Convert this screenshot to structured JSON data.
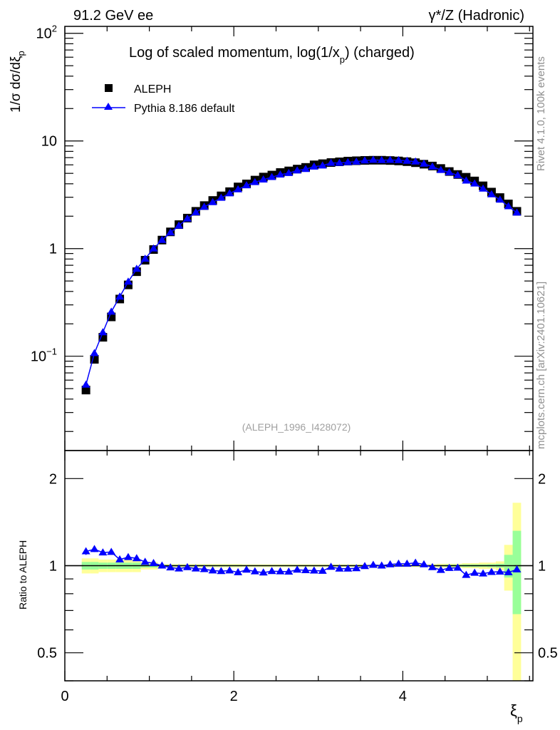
{
  "header": {
    "left": "91.2 GeV ee",
    "right": "γ*/Z (Hadronic)",
    "side_top": "Rivet 4.1.0,  100k events",
    "side_bottom": "mcplots.cern.ch [arXiv:2401.10621]"
  },
  "chart_data": [
    {
      "type": "scatter",
      "title": "Log of scaled momentum, log(1/x_p) (charged)",
      "title_main": "Log of scaled momentum, log(1/x",
      "title_sub": "p",
      "title_end": ") (charged)",
      "ylabel": "1/σ  dσ/dξ_p",
      "ylabel_main": "1/σ  dσ/dξ",
      "ylabel_sub": "p",
      "yscale": "log",
      "ylim": [
        0.0133,
        116
      ],
      "xlim": [
        0,
        5.54
      ],
      "y_tick_labels": [
        {
          "value": 0.1,
          "base": "10",
          "exp": "−1"
        },
        {
          "value": 1,
          "base": "1",
          "exp": ""
        },
        {
          "value": 10,
          "base": "10",
          "exp": ""
        },
        {
          "value": 100,
          "base": "10",
          "exp": "2"
        }
      ],
      "legend_position": "top-left",
      "annotation": "(ALEPH_1996_I428072)",
      "x": [
        0.25,
        0.35,
        0.45,
        0.55,
        0.65,
        0.75,
        0.85,
        0.95,
        1.05,
        1.15,
        1.25,
        1.35,
        1.45,
        1.55,
        1.65,
        1.75,
        1.85,
        1.95,
        2.05,
        2.15,
        2.25,
        2.35,
        2.45,
        2.55,
        2.65,
        2.75,
        2.85,
        2.95,
        3.05,
        3.15,
        3.25,
        3.35,
        3.45,
        3.55,
        3.65,
        3.75,
        3.85,
        3.95,
        4.05,
        4.15,
        4.25,
        4.35,
        4.45,
        4.55,
        4.65,
        4.75,
        4.85,
        4.95,
        5.05,
        5.15,
        5.25,
        5.35
      ],
      "series": [
        {
          "name": "ALEPH",
          "color": "#000000",
          "marker": "square",
          "values": [
            0.0485,
            0.0936,
            0.15,
            0.232,
            0.34,
            0.46,
            0.61,
            0.78,
            0.98,
            1.2,
            1.43,
            1.67,
            1.92,
            2.22,
            2.51,
            2.8,
            3.09,
            3.38,
            3.74,
            3.99,
            4.33,
            4.62,
            4.82,
            5.09,
            5.27,
            5.48,
            5.68,
            6.0,
            6.15,
            6.3,
            6.4,
            6.5,
            6.55,
            6.6,
            6.62,
            6.62,
            6.58,
            6.52,
            6.42,
            6.28,
            6.08,
            5.85,
            5.55,
            5.2,
            4.88,
            4.6,
            4.25,
            3.83,
            3.35,
            2.98,
            2.6,
            2.22
          ]
        },
        {
          "name": "Pythia 8.186 default",
          "color": "#0000ff",
          "marker": "triangle",
          "derived_from_ratio": true
        }
      ]
    },
    {
      "type": "line",
      "ylabel": "Ratio to ALEPH",
      "xlabel": "ξ_p",
      "xlabel_main": "ξ",
      "xlabel_sub": "p",
      "yscale": "log",
      "ylim": [
        0.4,
        2.5
      ],
      "xlim": [
        0,
        5.54
      ],
      "x_tick_labels": [
        {
          "value": 0,
          "label": "0"
        },
        {
          "value": 2,
          "label": "2"
        },
        {
          "value": 4,
          "label": "4"
        }
      ],
      "y_tick_labels": [
        {
          "value": 0.5,
          "label": "0.5"
        },
        {
          "value": 1,
          "label": "1"
        },
        {
          "value": 2,
          "label": "2"
        }
      ],
      "bin_width": 0.1,
      "ratio": [
        1.12,
        1.14,
        1.11,
        1.115,
        1.05,
        1.07,
        1.06,
        1.03,
        1.02,
        1.0,
        0.985,
        0.977,
        0.987,
        0.977,
        0.972,
        0.962,
        0.957,
        0.962,
        0.948,
        0.968,
        0.955,
        0.946,
        0.957,
        0.955,
        0.953,
        0.968,
        0.964,
        0.961,
        0.959,
        0.99,
        0.976,
        0.976,
        0.979,
        0.996,
        1.006,
        1.0,
        1.01,
        1.015,
        1.015,
        1.023,
        1.01,
        0.987,
        0.966,
        0.981,
        0.983,
        0.928,
        0.944,
        0.939,
        0.95,
        0.953,
        0.948,
        0.97
      ],
      "ratio_err": [
        0.03,
        0.025,
        0.02,
        0.015,
        0.01,
        0.01,
        0.01,
        0.008,
        0.006,
        0.005,
        0.005,
        0.005,
        0.005,
        0.005,
        0.005,
        0.005,
        0.005,
        0.005,
        0.005,
        0.005,
        0.005,
        0.005,
        0.005,
        0.005,
        0.005,
        0.005,
        0.005,
        0.005,
        0.005,
        0.005,
        0.005,
        0.005,
        0.005,
        0.005,
        0.005,
        0.005,
        0.005,
        0.005,
        0.005,
        0.005,
        0.005,
        0.005,
        0.005,
        0.005,
        0.005,
        0.005,
        0.005,
        0.005,
        0.005,
        0.005,
        0.01,
        0.02
      ],
      "band_inner": [
        0.03,
        0.03,
        0.025,
        0.025,
        0.025,
        0.025,
        0.025,
        0.015,
        0.015,
        0.006,
        0.006,
        0.006,
        0.006,
        0.006,
        0.006,
        0.006,
        0.006,
        0.006,
        0.006,
        0.005,
        0.005,
        0.005,
        0.005,
        0.005,
        0.005,
        0.005,
        0.005,
        0.005,
        0.005,
        0.005,
        0.005,
        0.005,
        0.005,
        0.005,
        0.005,
        0.005,
        0.005,
        0.005,
        0.005,
        0.005,
        0.005,
        0.005,
        0.006,
        0.008,
        0.008,
        0.01,
        0.01,
        0.01,
        0.012,
        0.015,
        0.09,
        0.32
      ],
      "band_outer": [
        0.06,
        0.06,
        0.05,
        0.05,
        0.05,
        0.05,
        0.05,
        0.03,
        0.03,
        0.012,
        0.012,
        0.012,
        0.012,
        0.012,
        0.012,
        0.012,
        0.012,
        0.012,
        0.012,
        0.01,
        0.01,
        0.01,
        0.01,
        0.01,
        0.01,
        0.01,
        0.01,
        0.01,
        0.01,
        0.01,
        0.01,
        0.01,
        0.01,
        0.01,
        0.01,
        0.01,
        0.01,
        0.01,
        0.01,
        0.01,
        0.01,
        0.012,
        0.015,
        0.015,
        0.015,
        0.02,
        0.02,
        0.025,
        0.025,
        0.035,
        0.18,
        0.65
      ],
      "band_colors": {
        "inner": "#99ff99",
        "outer": "#ffff99"
      }
    }
  ]
}
